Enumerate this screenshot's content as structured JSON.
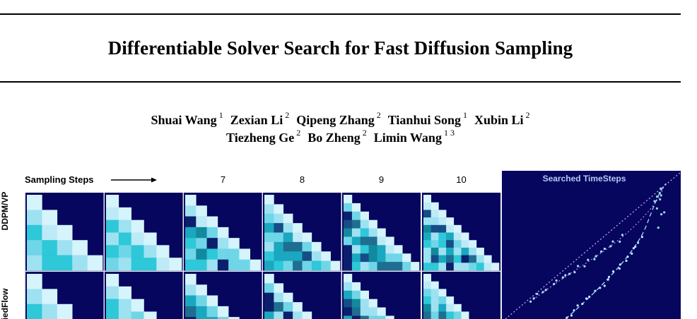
{
  "paper": {
    "title": "Differentiable Solver Search for Fast Diffusion Sampling",
    "authors_line1": [
      {
        "name": "Shuai Wang",
        "aff": "1"
      },
      {
        "name": "Zexian Li",
        "aff": "2"
      },
      {
        "name": "Qipeng Zhang",
        "aff": "2"
      },
      {
        "name": "Tianhui Song",
        "aff": "1"
      },
      {
        "name": "Xubin Li",
        "aff": "2"
      }
    ],
    "authors_line2": [
      {
        "name": "Tiezheng Ge",
        "aff": "2"
      },
      {
        "name": "Bo Zheng",
        "aff": "2"
      },
      {
        "name": "Limin Wang",
        "aff": "1 3"
      }
    ]
  },
  "figure": {
    "header_label": "Sampling Steps",
    "step_labels": [
      "7",
      "8",
      "9",
      "10"
    ],
    "row_labels": [
      "DDPM/VP",
      "fiedFlow"
    ],
    "panel_title": "Searched TimeSteps",
    "colors": {
      "background": "#06065e",
      "cell_palette": [
        "#d6f4fb",
        "#bdeaf7",
        "#9ee2f2",
        "#6fd6e8",
        "#2ec8d8",
        "#1aa8c0",
        "#12899e",
        "#1f6e92",
        "#164d86",
        "#0b1f6e"
      ],
      "curve_dotted": "#b07bd8",
      "curve_dashed": "#a9d8ff"
    }
  }
}
